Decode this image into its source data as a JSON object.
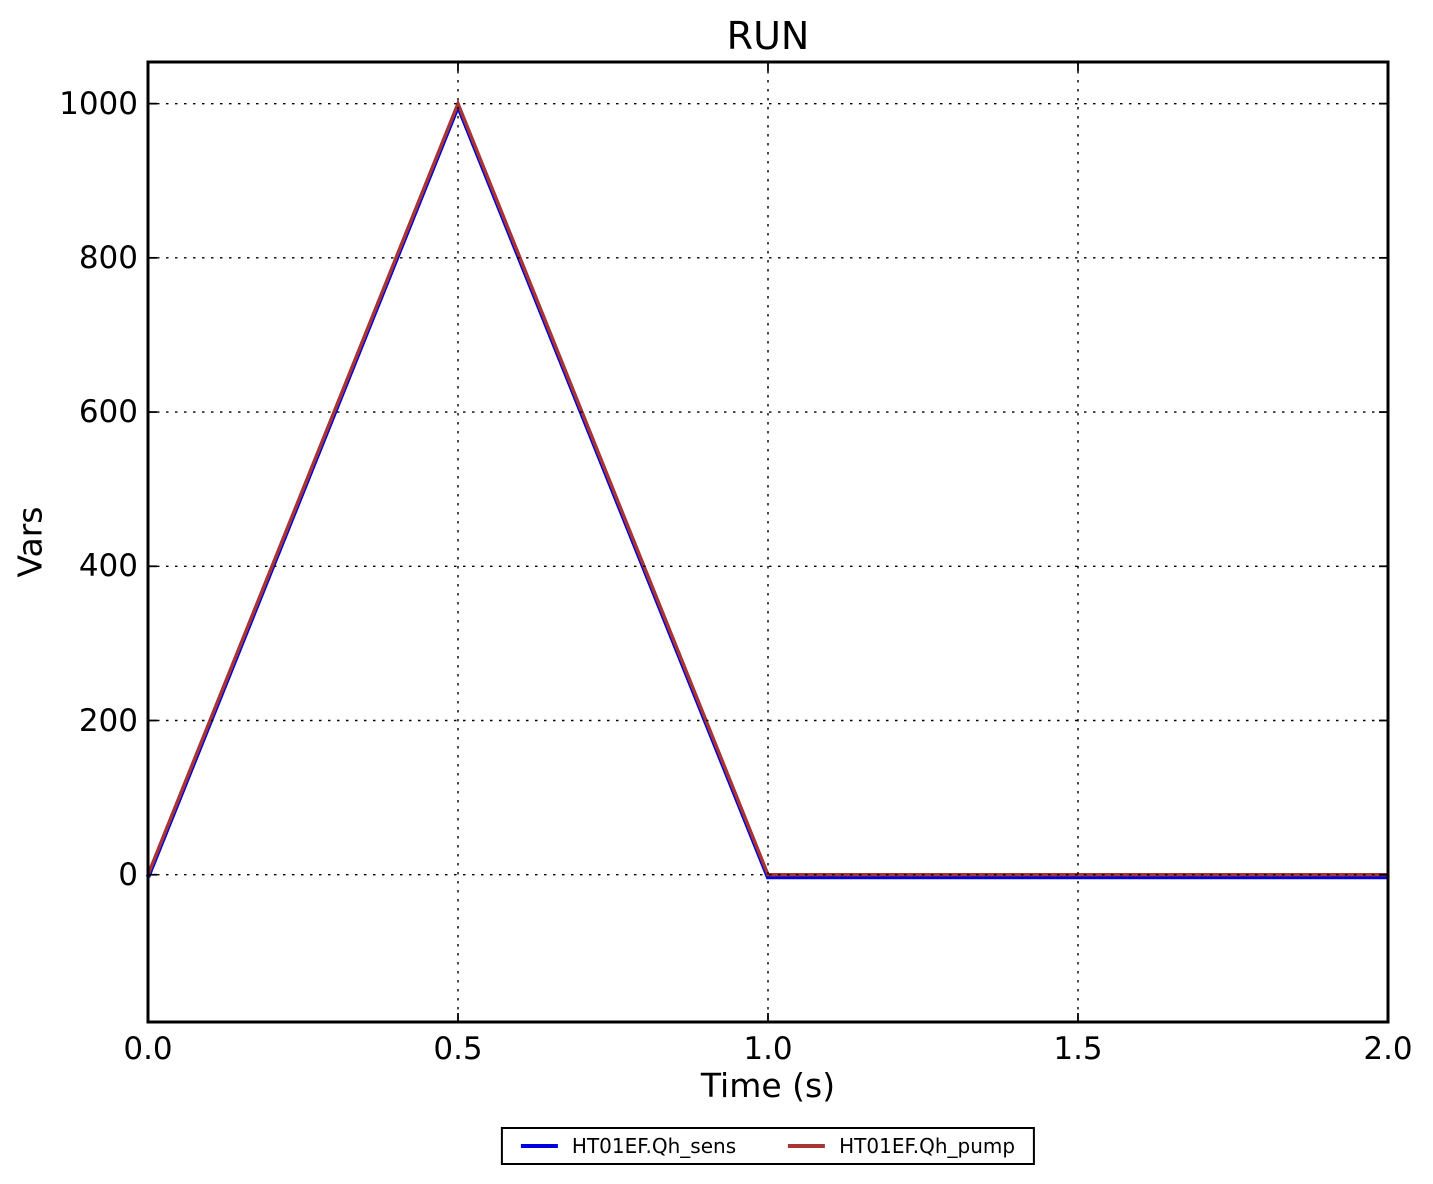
{
  "chart_data": {
    "type": "line",
    "title": "RUN",
    "xlabel": "Time (s)",
    "ylabel": "Vars",
    "xlim": [
      0.0,
      2.0
    ],
    "ylim": [
      -191,
      1054
    ],
    "xticks": {
      "values": [
        0.0,
        0.5,
        1.0,
        1.5,
        2.0
      ],
      "labels": [
        "0.0",
        "0.5",
        "1.0",
        "1.5",
        "2.0"
      ]
    },
    "yticks": {
      "values": [
        0,
        200,
        400,
        600,
        800,
        1000
      ],
      "labels": [
        "0",
        "200",
        "400",
        "600",
        "800",
        "1000"
      ]
    },
    "grid": "dotted",
    "grid_color": "#000000",
    "legend_position": "bottom-center",
    "series": [
      {
        "name": "HT01EF.Qh_sens",
        "color": "#0000dd",
        "x": [
          0.0,
          0.5,
          1.0,
          2.0
        ],
        "y": [
          0,
          1000,
          0,
          0
        ]
      },
      {
        "name": "HT01EF.Qh_pump",
        "color": "#a83434",
        "x": [
          0.0,
          0.5,
          1.0,
          2.0
        ],
        "y": [
          0,
          1000,
          0,
          0
        ]
      }
    ]
  }
}
